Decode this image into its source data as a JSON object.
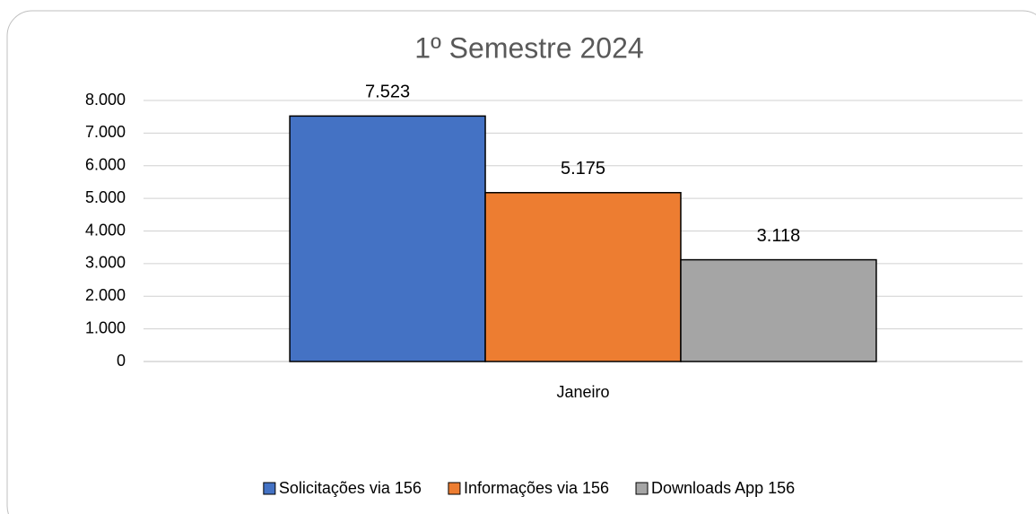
{
  "chart_data": {
    "type": "bar",
    "title": "1º Semestre 2024",
    "categories": [
      "Janeiro"
    ],
    "series": [
      {
        "name": "Solicitações via 156",
        "color": "#4472c4",
        "values": [
          7523
        ],
        "value_labels": [
          "7.523"
        ]
      },
      {
        "name": "Informações via 156",
        "color": "#ed7d31",
        "values": [
          5175
        ],
        "value_labels": [
          "5.175"
        ]
      },
      {
        "name": "Downloads App 156",
        "color": "#a5a5a5",
        "values": [
          3118
        ],
        "value_labels": [
          "3.118"
        ]
      }
    ],
    "ylim": [
      0,
      8000
    ],
    "yticks": [
      0,
      {
        "value": 1000,
        "label": "1.000"
      },
      {
        "value": 2000,
        "label": "2.000"
      },
      {
        "value": 3000,
        "label": "3.000"
      },
      {
        "value": 4000,
        "label": "4.000"
      },
      {
        "value": 5000,
        "label": "5.000"
      },
      {
        "value": 6000,
        "label": "6.000"
      },
      {
        "value": 7000,
        "label": "7.000"
      },
      {
        "value": 8000,
        "label": "8.000"
      }
    ],
    "grid": true,
    "legend": "bottom"
  }
}
